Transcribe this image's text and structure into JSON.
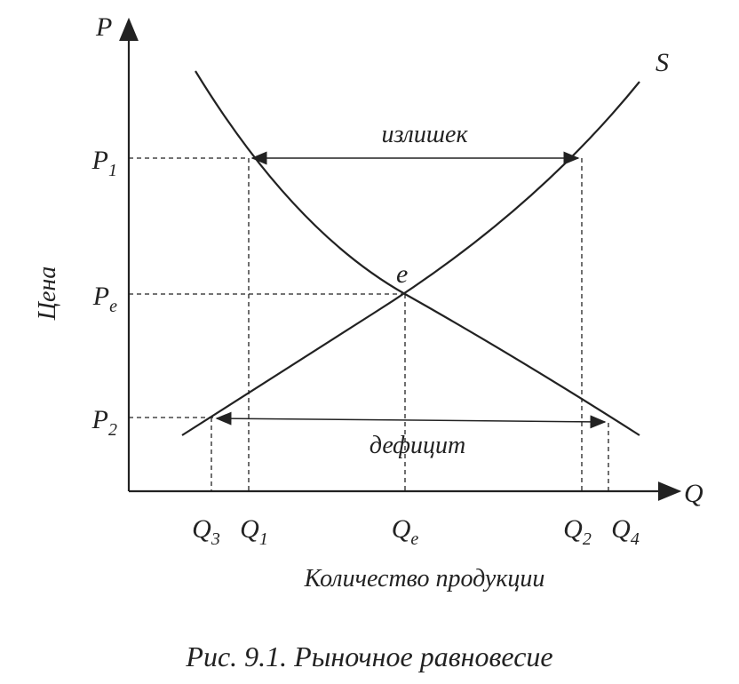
{
  "axes": {
    "y_label": "P",
    "x_label": "Q",
    "y_title": "Цена",
    "x_title": "Количество продукции"
  },
  "curves": {
    "supply": "S",
    "equilibrium": "e"
  },
  "price_levels": [
    {
      "base": "P",
      "sub": "1"
    },
    {
      "base": "P",
      "sub": "e"
    },
    {
      "base": "P",
      "sub": "2"
    }
  ],
  "quantities": [
    {
      "base": "Q",
      "sub": "3"
    },
    {
      "base": "Q",
      "sub": "1"
    },
    {
      "base": "Q",
      "sub": "e"
    },
    {
      "base": "Q",
      "sub": "2"
    },
    {
      "base": "Q",
      "sub": "4"
    }
  ],
  "annotations": {
    "surplus": "излишек",
    "deficit": "дефицит"
  },
  "caption": "Рис. 9.1. Рыночное равновесие"
}
